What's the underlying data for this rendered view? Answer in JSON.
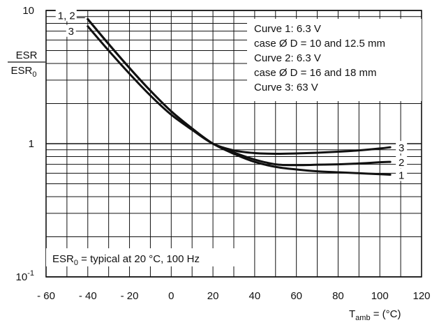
{
  "chart_data": {
    "type": "line",
    "title": "",
    "x_ticks": [
      -60,
      -40,
      -20,
      0,
      20,
      40,
      60,
      80,
      100,
      120
    ],
    "x_tick_labels": [
      "- 60",
      "- 40",
      "- 20",
      "0",
      "20",
      "40",
      "60",
      "80",
      "100",
      "120"
    ],
    "xlim": [
      -60,
      120
    ],
    "ylim": [
      0.1,
      10
    ],
    "y_scale": "log",
    "y_tick_labels": [
      {
        "value": 10,
        "base": "10",
        "sup": ""
      },
      {
        "value": 1,
        "base": "1",
        "sup": ""
      },
      {
        "value": 0.1,
        "base": "10",
        "sup": "-1"
      }
    ],
    "ylabel": {
      "numerator": "ESR",
      "denominator_base": "ESR",
      "denominator_sub": "0"
    },
    "xlabel": {
      "base": "T",
      "sub": "amb",
      "rest": " = (°C)"
    },
    "grid": true,
    "legend_lines": [
      "Curve 1: 6.3 V",
      "case Ø D = 10 and 12.5 mm",
      "Curve 2: 6.3 V",
      "case Ø D = 16 and 18 mm",
      "Curve 3: 63 V"
    ],
    "note": {
      "base": "ESR",
      "sub": "0",
      "rest": " = typical at 20 °C, 100 Hz"
    },
    "series": [
      {
        "name": "1",
        "color": "#111111",
        "x": [
          -40,
          -30,
          -20,
          -10,
          0,
          10,
          20,
          30,
          40,
          50,
          60,
          70,
          80,
          90,
          100,
          105
        ],
        "y": [
          8.6,
          5.6,
          3.7,
          2.5,
          1.75,
          1.3,
          1.0,
          0.84,
          0.73,
          0.67,
          0.64,
          0.62,
          0.61,
          0.6,
          0.59,
          0.585
        ]
      },
      {
        "name": "2",
        "color": "#111111",
        "x": [
          -40,
          -30,
          -20,
          -10,
          0,
          10,
          20,
          30,
          40,
          50,
          60,
          70,
          80,
          90,
          100,
          105
        ],
        "y": [
          8.6,
          5.6,
          3.7,
          2.5,
          1.75,
          1.3,
          1.0,
          0.86,
          0.76,
          0.7,
          0.69,
          0.695,
          0.7,
          0.71,
          0.725,
          0.73
        ]
      },
      {
        "name": "3",
        "color": "#111111",
        "x": [
          -40,
          -30,
          -20,
          -10,
          0,
          10,
          20,
          30,
          40,
          50,
          60,
          70,
          80,
          90,
          100,
          105
        ],
        "y": [
          7.6,
          5.0,
          3.35,
          2.3,
          1.65,
          1.27,
          1.0,
          0.89,
          0.85,
          0.84,
          0.845,
          0.855,
          0.87,
          0.89,
          0.92,
          0.94
        ]
      }
    ]
  }
}
